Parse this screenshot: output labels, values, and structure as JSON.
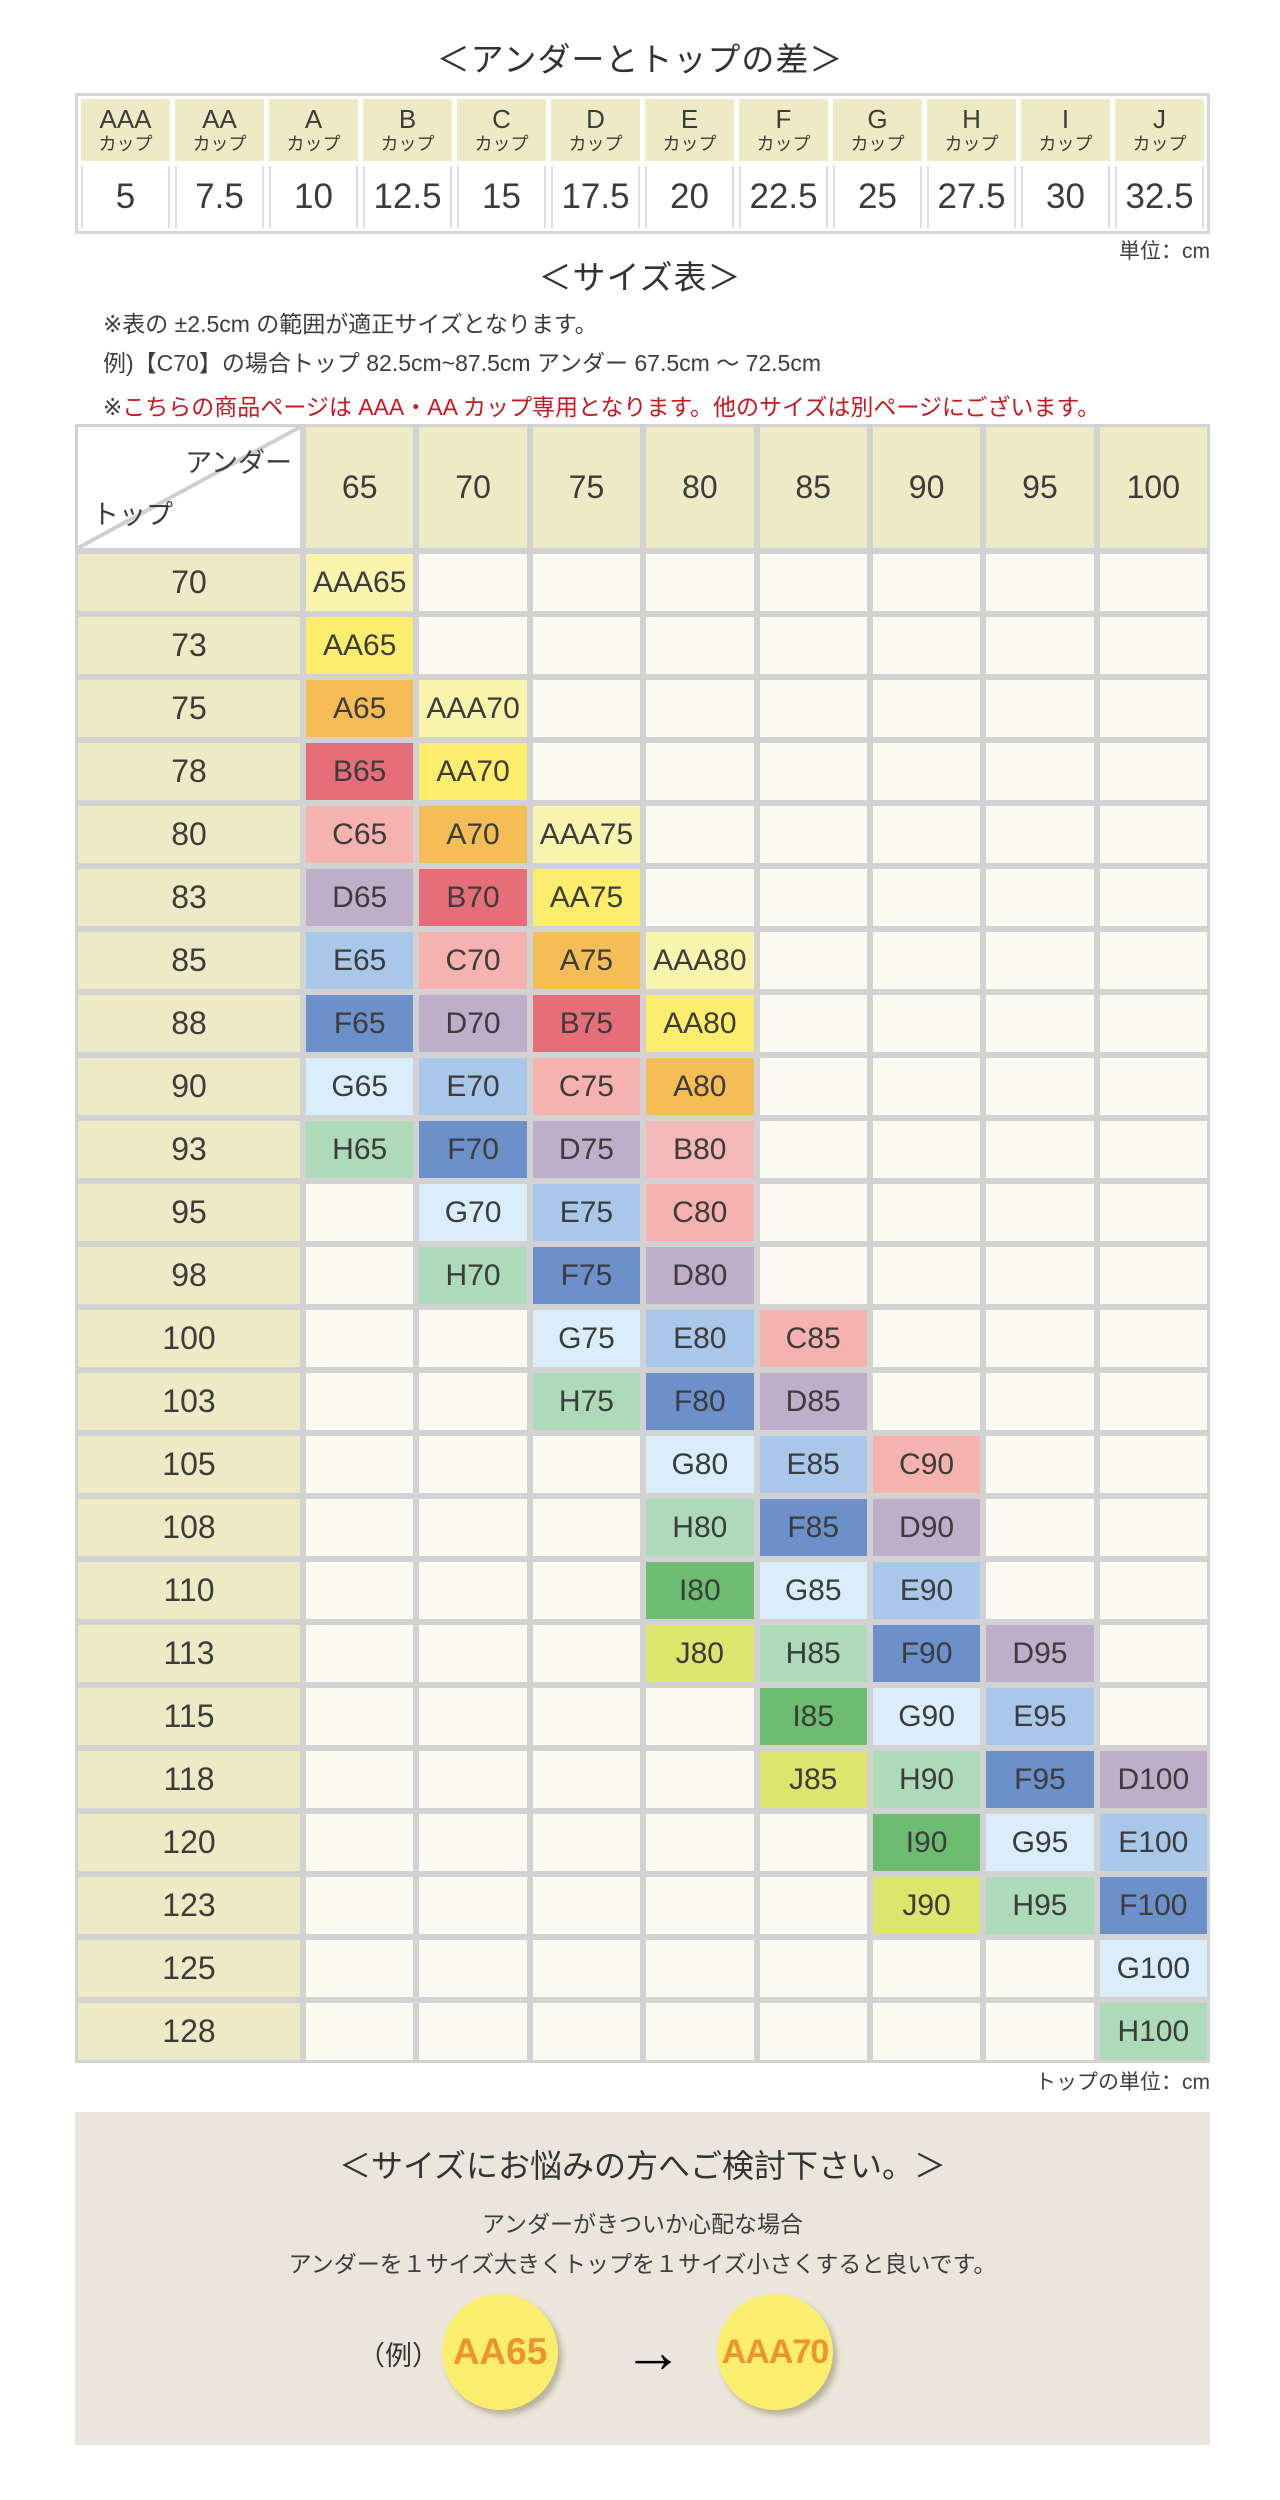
{
  "titles": {
    "diff_title": "＜アンダーとトップの差＞",
    "size_title": "＜サイズ表＞",
    "unit": "単位：cm",
    "top_unit": "トップの単位：cm"
  },
  "notes": {
    "note1": "※表の ±2.5cm の範囲が適正サイズとなります。",
    "note2": "例)【C70】の場合トップ 82.5cm~87.5cm アンダー 67.5cm ～ 72.5cm",
    "note3_prefix": "※",
    "note3": "こちらの商品ページは AAA・AA カップ専用となります。他のサイズは別ページにございます。",
    "note3_color": "#c9161f"
  },
  "cup_diff_table": {
    "cup_suffix": "カップ",
    "columns": [
      {
        "cup": "AAA",
        "value": "5"
      },
      {
        "cup": "AA",
        "value": "7.5"
      },
      {
        "cup": "A",
        "value": "10"
      },
      {
        "cup": "B",
        "value": "12.5"
      },
      {
        "cup": "C",
        "value": "15"
      },
      {
        "cup": "D",
        "value": "17.5"
      },
      {
        "cup": "E",
        "value": "20"
      },
      {
        "cup": "F",
        "value": "22.5"
      },
      {
        "cup": "G",
        "value": "25"
      },
      {
        "cup": "H",
        "value": "27.5"
      },
      {
        "cup": "I",
        "value": "30"
      },
      {
        "cup": "J",
        "value": "32.5"
      }
    ]
  },
  "size_matrix": {
    "corner_top_right": "アンダー",
    "corner_bottom_left": "トップ",
    "under_sizes": [
      "65",
      "70",
      "75",
      "80",
      "85",
      "90",
      "95",
      "100"
    ],
    "cup_colors": {
      "AAA": "#f8f4ad",
      "AA": "#fcee6c",
      "A": "#f5bd55",
      "B": "#e66e79",
      "C": "#f5b2ae",
      "D": "#bfaec9",
      "E": "#a9c8e9",
      "F": "#6b90ca",
      "G": "#d9edfa",
      "H": "#addbb9",
      "I": "#6cbd72",
      "J": "#dce56c"
    },
    "cell_color_overrides": {
      "B80": "#f4b8b8"
    },
    "rows": [
      {
        "top": "70",
        "cells": [
          {
            "col": 0,
            "label": "AAA65"
          }
        ]
      },
      {
        "top": "73",
        "cells": [
          {
            "col": 0,
            "label": "AA65"
          }
        ]
      },
      {
        "top": "75",
        "cells": [
          {
            "col": 0,
            "label": "A65"
          },
          {
            "col": 1,
            "label": "AAA70"
          }
        ]
      },
      {
        "top": "78",
        "cells": [
          {
            "col": 0,
            "label": "B65"
          },
          {
            "col": 1,
            "label": "AA70"
          }
        ]
      },
      {
        "top": "80",
        "cells": [
          {
            "col": 0,
            "label": "C65"
          },
          {
            "col": 1,
            "label": "A70"
          },
          {
            "col": 2,
            "label": "AAA75"
          }
        ]
      },
      {
        "top": "83",
        "cells": [
          {
            "col": 0,
            "label": "D65"
          },
          {
            "col": 1,
            "label": "B70"
          },
          {
            "col": 2,
            "label": "AA75"
          }
        ]
      },
      {
        "top": "85",
        "cells": [
          {
            "col": 0,
            "label": "E65"
          },
          {
            "col": 1,
            "label": "C70"
          },
          {
            "col": 2,
            "label": "A75"
          },
          {
            "col": 3,
            "label": "AAA80"
          }
        ]
      },
      {
        "top": "88",
        "cells": [
          {
            "col": 0,
            "label": "F65"
          },
          {
            "col": 1,
            "label": "D70"
          },
          {
            "col": 2,
            "label": "B75"
          },
          {
            "col": 3,
            "label": "AA80"
          }
        ]
      },
      {
        "top": "90",
        "cells": [
          {
            "col": 0,
            "label": "G65"
          },
          {
            "col": 1,
            "label": "E70"
          },
          {
            "col": 2,
            "label": "C75"
          },
          {
            "col": 3,
            "label": "A80"
          }
        ]
      },
      {
        "top": "93",
        "cells": [
          {
            "col": 0,
            "label": "H65"
          },
          {
            "col": 1,
            "label": "F70"
          },
          {
            "col": 2,
            "label": "D75"
          },
          {
            "col": 3,
            "label": "B80"
          }
        ]
      },
      {
        "top": "95",
        "cells": [
          {
            "col": 1,
            "label": "G70"
          },
          {
            "col": 2,
            "label": "E75"
          },
          {
            "col": 3,
            "label": "C80"
          }
        ]
      },
      {
        "top": "98",
        "cells": [
          {
            "col": 1,
            "label": "H70"
          },
          {
            "col": 2,
            "label": "F75"
          },
          {
            "col": 3,
            "label": "D80"
          }
        ]
      },
      {
        "top": "100",
        "cells": [
          {
            "col": 2,
            "label": "G75"
          },
          {
            "col": 3,
            "label": "E80"
          },
          {
            "col": 4,
            "label": "C85"
          }
        ]
      },
      {
        "top": "103",
        "cells": [
          {
            "col": 2,
            "label": "H75"
          },
          {
            "col": 3,
            "label": "F80"
          },
          {
            "col": 4,
            "label": "D85"
          }
        ]
      },
      {
        "top": "105",
        "cells": [
          {
            "col": 3,
            "label": "G80"
          },
          {
            "col": 4,
            "label": "E85"
          },
          {
            "col": 5,
            "label": "C90"
          }
        ]
      },
      {
        "top": "108",
        "cells": [
          {
            "col": 3,
            "label": "H80"
          },
          {
            "col": 4,
            "label": "F85"
          },
          {
            "col": 5,
            "label": "D90"
          }
        ]
      },
      {
        "top": "110",
        "cells": [
          {
            "col": 3,
            "label": "I80"
          },
          {
            "col": 4,
            "label": "G85"
          },
          {
            "col": 5,
            "label": "E90"
          }
        ]
      },
      {
        "top": "113",
        "cells": [
          {
            "col": 3,
            "label": "J80"
          },
          {
            "col": 4,
            "label": "H85"
          },
          {
            "col": 5,
            "label": "F90"
          },
          {
            "col": 6,
            "label": "D95"
          }
        ]
      },
      {
        "top": "115",
        "cells": [
          {
            "col": 4,
            "label": "I85"
          },
          {
            "col": 5,
            "label": "G90"
          },
          {
            "col": 6,
            "label": "E95"
          }
        ]
      },
      {
        "top": "118",
        "cells": [
          {
            "col": 4,
            "label": "J85"
          },
          {
            "col": 5,
            "label": "H90"
          },
          {
            "col": 6,
            "label": "F95"
          },
          {
            "col": 7,
            "label": "D100"
          }
        ]
      },
      {
        "top": "120",
        "cells": [
          {
            "col": 5,
            "label": "I90"
          },
          {
            "col": 6,
            "label": "G95"
          },
          {
            "col": 7,
            "label": "E100"
          }
        ]
      },
      {
        "top": "123",
        "cells": [
          {
            "col": 5,
            "label": "J90"
          },
          {
            "col": 6,
            "label": "H95"
          },
          {
            "col": 7,
            "label": "F100"
          }
        ]
      },
      {
        "top": "125",
        "cells": [
          {
            "col": 7,
            "label": "G100"
          }
        ]
      },
      {
        "top": "128",
        "cells": [
          {
            "col": 7,
            "label": "H100"
          }
        ]
      }
    ]
  },
  "advice_box": {
    "title": "＜サイズにお悩みの方へご検討下さい。＞",
    "line1": "アンダーがきついか心配な場合",
    "line2": "アンダーを１サイズ大きくトップを１サイズ小さくすると良いです。",
    "example_label": "（例）",
    "from": "AA65",
    "arrow": "→",
    "to": "AAA70",
    "box_bg": "#eae6db",
    "circle_bg": "#fbed6d",
    "circle_text_color": "#ed9430"
  },
  "palette": {
    "header_beige": "#efeac6",
    "empty_cell": "#fcfbf1",
    "grid_line": "#d2d2d2",
    "text": "#3a3a3a",
    "red_note": "#c9161f"
  }
}
